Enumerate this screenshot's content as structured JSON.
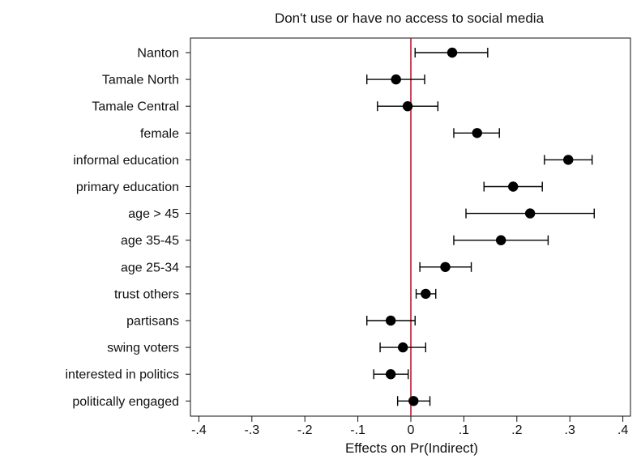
{
  "chart_data": {
    "type": "scatter",
    "title": "Don't use or have no access to social media",
    "xlabel": "Effects on Pr(Indirect)",
    "ylabel": "",
    "xlim": [
      -0.42,
      0.42
    ],
    "x_ticks": [
      -0.4,
      -0.3,
      -0.2,
      -0.1,
      0,
      0.1,
      0.2,
      0.3,
      0.4
    ],
    "x_tick_labels": [
      "-.4",
      "-.3",
      "-.2",
      "-.1",
      "0",
      ".1",
      ".2",
      ".3",
      ".4"
    ],
    "reference_line": {
      "x": 0,
      "color": "#c8102e"
    },
    "grid": false,
    "series": [
      {
        "points": [
          {
            "label": "Nanton",
            "estimate": 0.078,
            "ci_low": 0.008,
            "ci_high": 0.145
          },
          {
            "label": "Tamale North",
            "estimate": -0.028,
            "ci_low": -0.083,
            "ci_high": 0.026
          },
          {
            "label": "Tamale Central",
            "estimate": -0.006,
            "ci_low": -0.063,
            "ci_high": 0.051
          },
          {
            "label": "female",
            "estimate": 0.125,
            "ci_low": 0.081,
            "ci_high": 0.167
          },
          {
            "label": "informal education",
            "estimate": 0.297,
            "ci_low": 0.252,
            "ci_high": 0.342
          },
          {
            "label": "primary education",
            "estimate": 0.193,
            "ci_low": 0.138,
            "ci_high": 0.248
          },
          {
            "label": "age > 45",
            "estimate": 0.225,
            "ci_low": 0.104,
            "ci_high": 0.346
          },
          {
            "label": "age 35-45",
            "estimate": 0.17,
            "ci_low": 0.081,
            "ci_high": 0.259
          },
          {
            "label": "age 25-34",
            "estimate": 0.065,
            "ci_low": 0.017,
            "ci_high": 0.114
          },
          {
            "label": "trust others",
            "estimate": 0.028,
            "ci_low": 0.01,
            "ci_high": 0.047
          },
          {
            "label": "partisans",
            "estimate": -0.038,
            "ci_low": -0.083,
            "ci_high": 0.008
          },
          {
            "label": "swing voters",
            "estimate": -0.015,
            "ci_low": -0.058,
            "ci_high": 0.028
          },
          {
            "label": "interested in politics",
            "estimate": -0.038,
            "ci_low": -0.07,
            "ci_high": -0.005
          },
          {
            "label": "politically engaged",
            "estimate": 0.005,
            "ci_low": -0.025,
            "ci_high": 0.036
          }
        ]
      }
    ],
    "colors": {
      "point": "#000000",
      "errorbar": "#000000",
      "reference": "#c8102e",
      "frame": "#111111"
    }
  }
}
